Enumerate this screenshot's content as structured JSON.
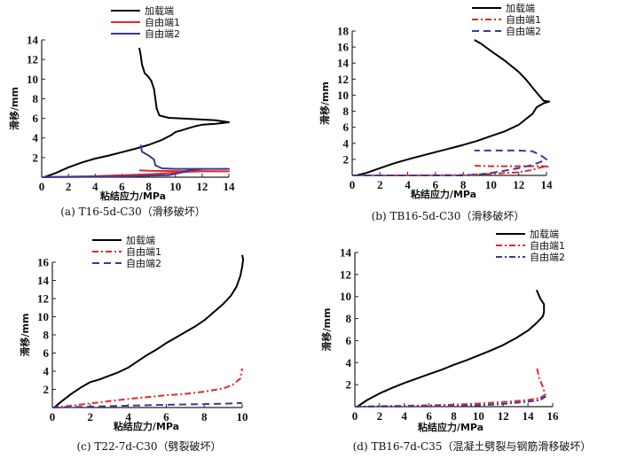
{
  "chart_data": [
    {
      "type": "line",
      "panel": "a",
      "caption": "(a) T16-5d-C30（滑移破坏）",
      "xlabel": "粘结应力/MPa",
      "ylabel": "滑移/mm",
      "xlim": [
        0,
        14
      ],
      "ylim": [
        0,
        14
      ],
      "xticks": [
        0,
        2,
        4,
        6,
        8,
        10,
        12,
        14
      ],
      "yticks": [
        2,
        4,
        6,
        8,
        10,
        12,
        14
      ],
      "legend_position": "top-right",
      "series": [
        {
          "name": "加载端",
          "color": "#000000",
          "style": "solid",
          "points": [
            [
              0.2,
              0
            ],
            [
              1,
              0.4
            ],
            [
              2,
              1.0
            ],
            [
              3,
              1.5
            ],
            [
              4,
              1.9
            ],
            [
              5,
              2.2
            ],
            [
              6,
              2.55
            ],
            [
              7,
              2.9
            ],
            [
              8,
              3.3
            ],
            [
              9,
              3.8
            ],
            [
              9.7,
              4.3
            ],
            [
              10,
              4.6
            ],
            [
              10.5,
              4.8
            ],
            [
              11,
              5.0
            ],
            [
              11.5,
              5.2
            ],
            [
              12,
              5.35
            ],
            [
              13,
              5.45
            ],
            [
              14,
              5.6
            ],
            [
              13,
              5.8
            ],
            [
              11,
              5.95
            ],
            [
              9.5,
              6.05
            ],
            [
              8.8,
              6.3
            ],
            [
              8.6,
              7
            ],
            [
              8.5,
              8
            ],
            [
              8.4,
              9
            ],
            [
              8.2,
              9.8
            ],
            [
              8,
              10.2
            ],
            [
              7.7,
              10.6
            ],
            [
              7.5,
              11.5
            ],
            [
              7.4,
              12.5
            ],
            [
              7.3,
              13.2
            ]
          ]
        },
        {
          "name": "自由端1",
          "color": "#e8262a",
          "style": "solid",
          "points": [
            [
              0,
              0
            ],
            [
              2,
              0.05
            ],
            [
              4,
              0.1
            ],
            [
              6,
              0.2
            ],
            [
              8,
              0.3
            ],
            [
              10,
              0.45
            ],
            [
              11,
              0.55
            ],
            [
              12,
              0.6
            ],
            [
              14,
              0.6
            ],
            [
              12,
              0.62
            ],
            [
              10,
              0.62
            ],
            [
              8,
              0.65
            ],
            [
              7.3,
              0.7
            ]
          ]
        },
        {
          "name": "自由端2",
          "color": "#3a3a9a",
          "style": "solid",
          "points": [
            [
              0,
              0
            ],
            [
              2,
              0.02
            ],
            [
              4,
              0.05
            ],
            [
              6,
              0.08
            ],
            [
              7,
              0.12
            ],
            [
              8,
              0.15
            ],
            [
              9.5,
              0.2
            ],
            [
              10,
              0.35
            ],
            [
              10.5,
              0.5
            ],
            [
              11,
              0.7
            ],
            [
              12,
              0.85
            ],
            [
              14,
              0.85
            ],
            [
              12,
              0.85
            ],
            [
              10,
              0.85
            ],
            [
              9,
              0.9
            ],
            [
              8.5,
              1.2
            ],
            [
              8.4,
              1.8
            ],
            [
              8,
              2.2
            ],
            [
              7.5,
              2.6
            ],
            [
              7.4,
              3.3
            ]
          ]
        }
      ]
    },
    {
      "type": "line",
      "panel": "b",
      "caption": "(b) TB16-5d-C30（滑移破坏）",
      "xlabel": "粘结应力/MPa",
      "ylabel": "滑移/mm",
      "xlim": [
        0,
        14
      ],
      "ylim": [
        0,
        18
      ],
      "xticks": [
        0,
        2,
        4,
        6,
        8,
        10,
        12,
        14
      ],
      "yticks": [
        2,
        4,
        6,
        8,
        10,
        12,
        14,
        16,
        18
      ],
      "legend_position": "top-right",
      "series": [
        {
          "name": "加载端",
          "color": "#000000",
          "style": "solid",
          "points": [
            [
              0.3,
              0
            ],
            [
              1,
              0.3
            ],
            [
              2,
              0.9
            ],
            [
              3,
              1.5
            ],
            [
              4,
              2.0
            ],
            [
              5,
              2.45
            ],
            [
              6,
              2.9
            ],
            [
              7,
              3.35
            ],
            [
              8,
              3.8
            ],
            [
              9,
              4.3
            ],
            [
              10,
              4.9
            ],
            [
              11,
              5.5
            ],
            [
              12,
              6.3
            ],
            [
              12.5,
              7
            ],
            [
              13,
              7.7
            ],
            [
              13.3,
              8.5
            ],
            [
              13.8,
              9.0
            ],
            [
              14.2,
              9.2
            ],
            [
              13.8,
              9.3
            ],
            [
              13.2,
              10.5
            ],
            [
              12.5,
              12
            ],
            [
              12,
              12.9
            ],
            [
              11,
              14.3
            ],
            [
              10,
              15.5
            ],
            [
              9.3,
              16.4
            ],
            [
              8.8,
              16.9
            ]
          ]
        },
        {
          "name": "自由端1",
          "color": "#e8262a",
          "style": "dashdot",
          "points": [
            [
              0,
              0
            ],
            [
              4,
              0
            ],
            [
              8,
              0.05
            ],
            [
              10,
              0.2
            ],
            [
              12,
              0.4
            ],
            [
              13,
              0.7
            ],
            [
              13.6,
              1.0
            ],
            [
              14.2,
              1.1
            ],
            [
              13.5,
              1.15
            ],
            [
              12,
              1.15
            ],
            [
              10,
              1.15
            ],
            [
              8.8,
              1.2
            ]
          ]
        },
        {
          "name": "自由端2",
          "color": "#3a3a9a",
          "style": "dashed",
          "points": [
            [
              0,
              0
            ],
            [
              4,
              0
            ],
            [
              8,
              0
            ],
            [
              9,
              0.1
            ],
            [
              10,
              0.3
            ],
            [
              11,
              0.6
            ],
            [
              12,
              0.9
            ],
            [
              13,
              1.3
            ],
            [
              13.6,
              1.7
            ],
            [
              14,
              2.0
            ],
            [
              13.6,
              2.5
            ],
            [
              13,
              3.0
            ],
            [
              12,
              3.1
            ],
            [
              10,
              3.1
            ],
            [
              8.8,
              3.1
            ]
          ]
        }
      ]
    },
    {
      "type": "line",
      "panel": "c",
      "caption": "(c) T22-7d-C30（劈裂破坏）",
      "xlabel": "粘结应力/MPa",
      "ylabel": "滑移/mm",
      "xlim": [
        0,
        10
      ],
      "ylim": [
        0,
        16
      ],
      "xticks": [
        0,
        2,
        4,
        6,
        8,
        10
      ],
      "yticks": [
        2,
        4,
        6,
        8,
        10,
        12,
        14,
        16
      ],
      "legend_position": "top-center",
      "series": [
        {
          "name": "加载端",
          "color": "#000000",
          "style": "solid",
          "points": [
            [
              0.1,
              0
            ],
            [
              0.5,
              0.7
            ],
            [
              1,
              1.5
            ],
            [
              1.5,
              2.2
            ],
            [
              2,
              2.8
            ],
            [
              2.5,
              3.1
            ],
            [
              3,
              3.5
            ],
            [
              3.5,
              3.9
            ],
            [
              4,
              4.4
            ],
            [
              4.5,
              5.1
            ],
            [
              5,
              5.8
            ],
            [
              5.5,
              6.4
            ],
            [
              6,
              7.1
            ],
            [
              6.5,
              7.7
            ],
            [
              7,
              8.3
            ],
            [
              7.5,
              8.9
            ],
            [
              8,
              9.6
            ],
            [
              8.5,
              10.5
            ],
            [
              9,
              11.4
            ],
            [
              9.4,
              12.3
            ],
            [
              9.7,
              13.3
            ],
            [
              9.9,
              14.5
            ],
            [
              10,
              15.5
            ],
            [
              10.05,
              16.3
            ],
            [
              10,
              16.8
            ]
          ]
        },
        {
          "name": "自由端1",
          "color": "#e8262a",
          "style": "dashdot",
          "points": [
            [
              0,
              0
            ],
            [
              0.5,
              0.1
            ],
            [
              1,
              0.2
            ],
            [
              2,
              0.45
            ],
            [
              3,
              0.7
            ],
            [
              4,
              0.95
            ],
            [
              5,
              1.15
            ],
            [
              6,
              1.35
            ],
            [
              7,
              1.5
            ],
            [
              8,
              1.75
            ],
            [
              9,
              2.1
            ],
            [
              9.5,
              2.5
            ],
            [
              9.9,
              3.2
            ],
            [
              10,
              4.3
            ]
          ]
        },
        {
          "name": "自由端2",
          "color": "#3a3a9a",
          "style": "dashed",
          "points": [
            [
              0,
              0
            ],
            [
              1,
              0.05
            ],
            [
              2,
              0.1
            ],
            [
              4,
              0.2
            ],
            [
              6,
              0.3
            ],
            [
              8,
              0.38
            ],
            [
              9,
              0.42
            ],
            [
              10,
              0.5
            ]
          ]
        }
      ]
    },
    {
      "type": "line",
      "panel": "d",
      "caption": "(d) TB16-7d-C35（混凝土劈裂与钢筋滑移破坏）",
      "xlabel": "粘结应力/MPa",
      "ylabel": "滑移/mm",
      "xlim": [
        0,
        16
      ],
      "ylim": [
        0,
        14
      ],
      "xticks": [
        0,
        2,
        4,
        6,
        8,
        10,
        12,
        14,
        16
      ],
      "yticks": [
        2,
        4,
        6,
        8,
        10,
        12,
        14
      ],
      "legend_position": "top-right",
      "series": [
        {
          "name": "加载端",
          "color": "#000000",
          "style": "solid",
          "points": [
            [
              0.2,
              0
            ],
            [
              1,
              0.6
            ],
            [
              2,
              1.2
            ],
            [
              3,
              1.7
            ],
            [
              4,
              2.15
            ],
            [
              5,
              2.55
            ],
            [
              6,
              2.95
            ],
            [
              7,
              3.35
            ],
            [
              8,
              3.8
            ],
            [
              9,
              4.2
            ],
            [
              10,
              4.65
            ],
            [
              11,
              5.1
            ],
            [
              12,
              5.6
            ],
            [
              13,
              6.2
            ],
            [
              14,
              6.9
            ],
            [
              14.7,
              7.6
            ],
            [
              15.2,
              8.2
            ],
            [
              15.3,
              8.6
            ],
            [
              15.3,
              9.3
            ],
            [
              15.0,
              9.8
            ],
            [
              14.7,
              10.6
            ]
          ]
        },
        {
          "name": "自由端1",
          "color": "#e8262a",
          "style": "dashdot",
          "points": [
            [
              0,
              0
            ],
            [
              2,
              0.05
            ],
            [
              4,
              0.08
            ],
            [
              6,
              0.12
            ],
            [
              8,
              0.18
            ],
            [
              10,
              0.28
            ],
            [
              12,
              0.42
            ],
            [
              14,
              0.6
            ],
            [
              15,
              0.8
            ],
            [
              15.4,
              1.1
            ],
            [
              15.2,
              1.8
            ],
            [
              14.9,
              2.6
            ],
            [
              14.7,
              3.7
            ]
          ]
        },
        {
          "name": "自由端2",
          "color": "#3a3a9a",
          "style": "dashdot",
          "points": [
            [
              0,
              0
            ],
            [
              4,
              0.02
            ],
            [
              8,
              0.05
            ],
            [
              10,
              0.12
            ],
            [
              12,
              0.25
            ],
            [
              14,
              0.45
            ],
            [
              15,
              0.6
            ],
            [
              15.4,
              0.9
            ],
            [
              15.0,
              0.8
            ]
          ]
        }
      ]
    }
  ]
}
